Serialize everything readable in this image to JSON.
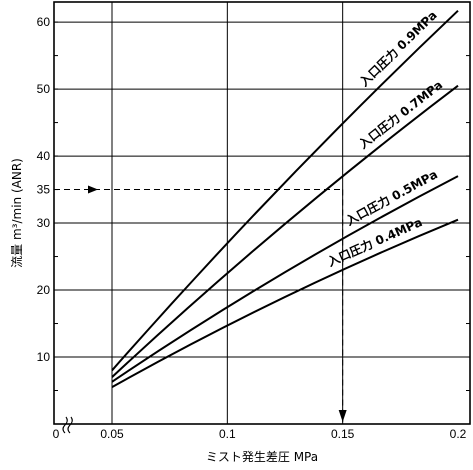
{
  "chart_data": {
    "type": "line",
    "xlabel": "ミスト発生差圧 MPa",
    "ylabel": "流量 m³/min (ANR)",
    "xlim": [
      0.05,
      0.2
    ],
    "ylim": [
      0,
      63
    ],
    "x_ticks": [
      {
        "value": 0.05,
        "label": "0.05"
      },
      {
        "value": 0.1,
        "label": "0.1"
      },
      {
        "value": 0.15,
        "label": "0.15"
      },
      {
        "value": 0.2,
        "label": "0.2"
      }
    ],
    "x_origin_label": "0",
    "y_ticks": [
      {
        "value": 10,
        "label": "10"
      },
      {
        "value": 20,
        "label": "20"
      },
      {
        "value": 30,
        "label": "30"
      },
      {
        "value": 35,
        "label": "35"
      },
      {
        "value": 40,
        "label": "40"
      },
      {
        "value": 50,
        "label": "50"
      },
      {
        "value": 60,
        "label": "60"
      }
    ],
    "grid": true,
    "series": [
      {
        "name": "入口圧力 0.9MPa",
        "x": [
          0.05,
          0.2
        ],
        "y": [
          8,
          61.7
        ]
      },
      {
        "name": "入口圧力 0.7MPa",
        "x": [
          0.05,
          0.2
        ],
        "y": [
          7,
          50.5
        ]
      },
      {
        "name": "入口圧力 0.5MPa",
        "x": [
          0.05,
          0.2
        ],
        "y": [
          6.3,
          37
        ]
      },
      {
        "name": "入口圧力 0.4MPa",
        "x": [
          0.05,
          0.2
        ],
        "y": [
          5.5,
          30.5
        ]
      }
    ],
    "reference": {
      "x": 0.15,
      "y": 35
    }
  }
}
